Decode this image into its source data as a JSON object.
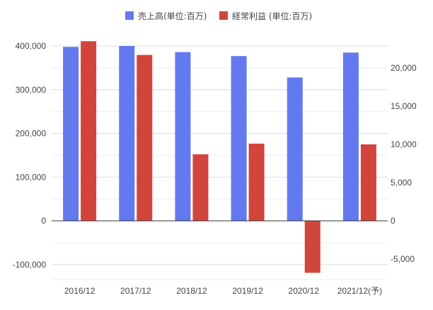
{
  "chart_data": {
    "type": "bar",
    "categories": [
      "2016/12",
      "2017/12",
      "2018/12",
      "2019/12",
      "2020/12",
      "2021/12(予)"
    ],
    "series": [
      {
        "name": "売上高(単位:百万)",
        "axis": "left",
        "color": "#6379ee",
        "values": [
          398000,
          400000,
          386000,
          377000,
          328000,
          385000
        ]
      },
      {
        "name": "経常利益 (単位:百万)",
        "axis": "right",
        "color": "#d2453c",
        "values": [
          23500,
          21700,
          8700,
          10100,
          -6800,
          10000
        ]
      }
    ],
    "left_axis": {
      "ylim": [
        -100000,
        400000
      ],
      "ticks": [
        400000,
        300000,
        200000,
        100000,
        0,
        -100000
      ],
      "tick_labels": [
        "400,000",
        "300,000",
        "200,000",
        "100,000",
        "0",
        "-100,000"
      ]
    },
    "right_axis": {
      "ticks": [
        20000,
        15000,
        10000,
        5000,
        0,
        -5000
      ],
      "tick_labels": [
        "20,000",
        "15,000",
        "10,000",
        "5,000",
        "0",
        "-5,000"
      ]
    },
    "legend": {
      "position": "top"
    },
    "grid": true
  }
}
